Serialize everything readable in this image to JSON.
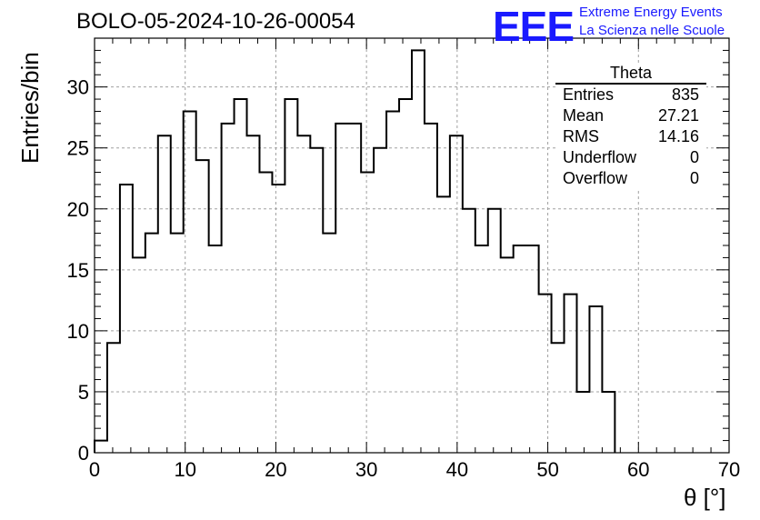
{
  "header": {
    "title": "BOLO-05-2024-10-26-00054",
    "logo_text": "EEE",
    "org_line1": "Extreme Energy Events",
    "org_line2": "La Scienza nelle Scuole"
  },
  "stats_box": {
    "title": "Theta",
    "rows": [
      {
        "label": "Entries",
        "value": "835"
      },
      {
        "label": "Mean",
        "value": "27.21"
      },
      {
        "label": "RMS",
        "value": "14.16"
      },
      {
        "label": "Underflow",
        "value": "0"
      },
      {
        "label": "Overflow",
        "value": "0"
      }
    ]
  },
  "colors": {
    "line": "#000000",
    "grid": "#a0a0a0",
    "brand": "#1a1aff"
  },
  "chart_data": {
    "type": "bar",
    "style": "step-histogram",
    "title": "BOLO-05-2024-10-26-00054",
    "xlabel": "θ [°]",
    "ylabel": "Entries/bin",
    "xlim": [
      0,
      70
    ],
    "ylim": [
      0,
      34
    ],
    "grid": true,
    "bin_width": 1.4,
    "bin_starts": [
      0,
      1.4,
      2.8,
      4.2,
      5.6,
      7.0,
      8.4,
      9.8,
      11.2,
      12.6,
      14.0,
      15.4,
      16.8,
      18.2,
      19.6,
      21.0,
      22.4,
      23.8,
      25.2,
      26.6,
      28.0,
      29.4,
      30.8,
      32.2,
      33.6,
      35.0,
      36.4,
      37.8,
      39.2,
      40.6,
      42.0,
      43.4,
      44.8,
      46.2,
      47.6,
      49.0,
      50.4,
      51.8,
      53.2,
      54.6,
      56.0
    ],
    "values": [
      1,
      9,
      22,
      16,
      18,
      26,
      18,
      28,
      24,
      17,
      27,
      29,
      26,
      23,
      22,
      29,
      26,
      25,
      18,
      27,
      27,
      23,
      25,
      28,
      29,
      33,
      27,
      21,
      26,
      20,
      17,
      20,
      16,
      17,
      17,
      13,
      9,
      13,
      5,
      12,
      5
    ],
    "xticks": [
      0,
      10,
      20,
      30,
      40,
      50,
      60,
      70
    ],
    "yticks": [
      0,
      5,
      10,
      15,
      20,
      25,
      30
    ]
  }
}
